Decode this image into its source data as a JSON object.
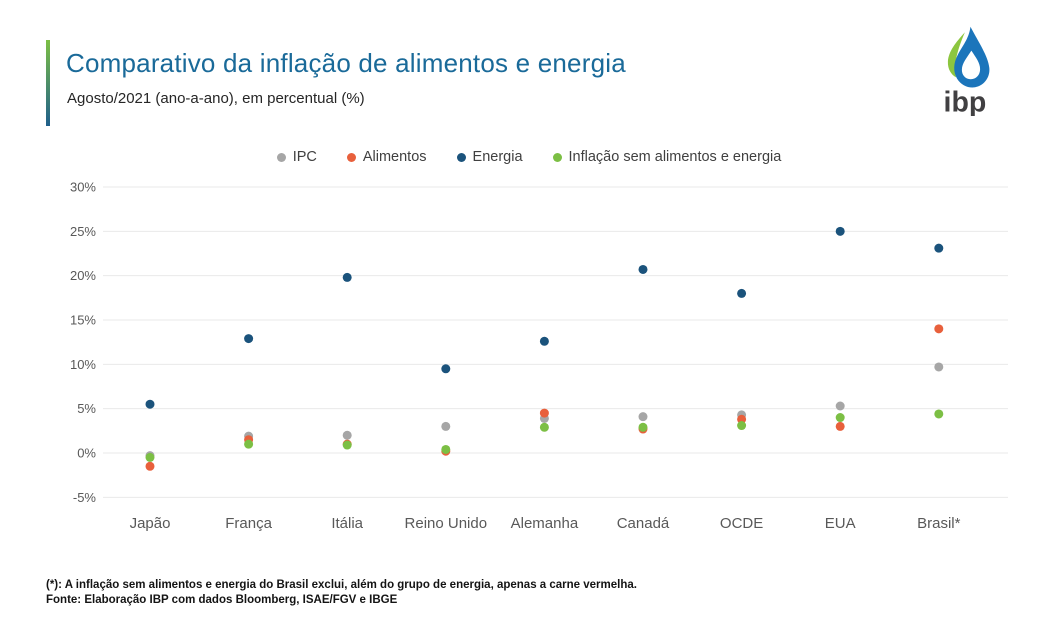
{
  "header": {
    "title": "Comparativo da inflação de alimentos e energia",
    "subtitle": "Agosto/2021 (ano-a-ano), em percentual (%)",
    "logo_text": "ibp"
  },
  "colors": {
    "title": "#1a6a99",
    "accent_bar_top": "#7cbf44",
    "accent_bar_bottom": "#1f5f8b",
    "gridline": "#e9e9e9",
    "axis_text": "#595959",
    "ipc": "#a6a6a6",
    "alimentos": "#e8603c",
    "energia": "#1b537c",
    "core": "#7cbf44",
    "logo_green": "#8cc63f",
    "logo_blue": "#1b75bb",
    "logo_text": "#414042"
  },
  "chart_data": {
    "type": "scatter",
    "categories": [
      "Japão",
      "França",
      "Itália",
      "Reino Unido",
      "Alemanha",
      "Canadá",
      "OCDE",
      "EUA",
      "Brasil*"
    ],
    "series": [
      {
        "name": "IPC",
        "color_key": "ipc",
        "values": [
          -0.3,
          1.9,
          2.0,
          3.0,
          3.9,
          4.1,
          4.3,
          5.3,
          9.7
        ]
      },
      {
        "name": "Alimentos",
        "color_key": "alimentos",
        "values": [
          -1.5,
          1.5,
          1.0,
          0.2,
          4.5,
          2.7,
          3.8,
          3.0,
          14.0
        ]
      },
      {
        "name": "Energia",
        "color_key": "energia",
        "values": [
          5.5,
          12.9,
          19.8,
          9.5,
          12.6,
          20.7,
          18.0,
          25.0,
          23.1
        ]
      },
      {
        "name": "Inflação sem alimentos e energia",
        "color_key": "core",
        "values": [
          -0.5,
          1.0,
          0.9,
          0.4,
          2.9,
          2.9,
          3.1,
          4.0,
          4.4
        ]
      }
    ],
    "ylim": [
      -5,
      30
    ],
    "ytick_step": 5,
    "ytick_suffix": "%",
    "grid": true,
    "legend_position": "top"
  },
  "footer": {
    "note": "(*): A inflação sem alimentos e energia do Brasil exclui, além do grupo de energia, apenas a carne vermelha.",
    "source": "Fonte: Elaboração IBP com dados Bloomberg, ISAE/FGV e IBGE"
  }
}
